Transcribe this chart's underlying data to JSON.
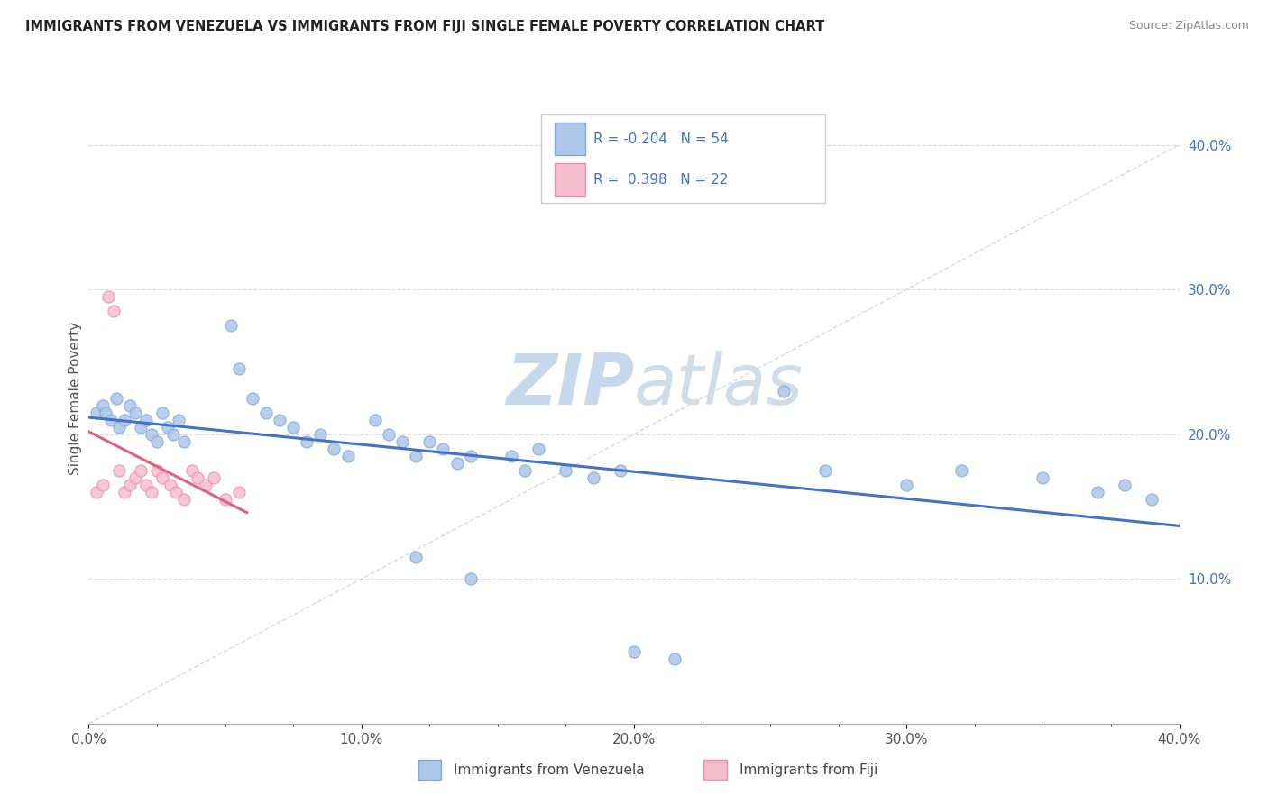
{
  "title": "IMMIGRANTS FROM VENEZUELA VS IMMIGRANTS FROM FIJI SINGLE FEMALE POVERTY CORRELATION CHART",
  "source": "Source: ZipAtlas.com",
  "ylabel": "Single Female Poverty",
  "xlim": [
    0.0,
    0.4
  ],
  "ylim": [
    0.0,
    0.45
  ],
  "xtick_labels": [
    "0.0%",
    "",
    "",
    "",
    "10.0%",
    "",
    "",
    "",
    "20.0%",
    "",
    "",
    "",
    "30.0%",
    "",
    "",
    "",
    "40.0%"
  ],
  "xtick_vals": [
    0.0,
    0.025,
    0.05,
    0.075,
    0.1,
    0.125,
    0.15,
    0.175,
    0.2,
    0.225,
    0.25,
    0.275,
    0.3,
    0.325,
    0.35,
    0.375,
    0.4
  ],
  "ytick_labels": [
    "10.0%",
    "20.0%",
    "30.0%",
    "40.0%"
  ],
  "ytick_vals": [
    0.1,
    0.2,
    0.3,
    0.4
  ],
  "color_venezuela": "#aec6e8",
  "color_fiji": "#f5bece",
  "edge_venezuela": "#7aaadc",
  "edge_fiji": "#e890a8",
  "line_venezuela": "#4472c4",
  "line_fiji": "#e06080",
  "diagonal_color": "#cccccc",
  "watermark_zip": "ZIP",
  "watermark_atlas": "atlas",
  "watermark_color": "#c8d8ec",
  "legend_color": "#4472c4"
}
